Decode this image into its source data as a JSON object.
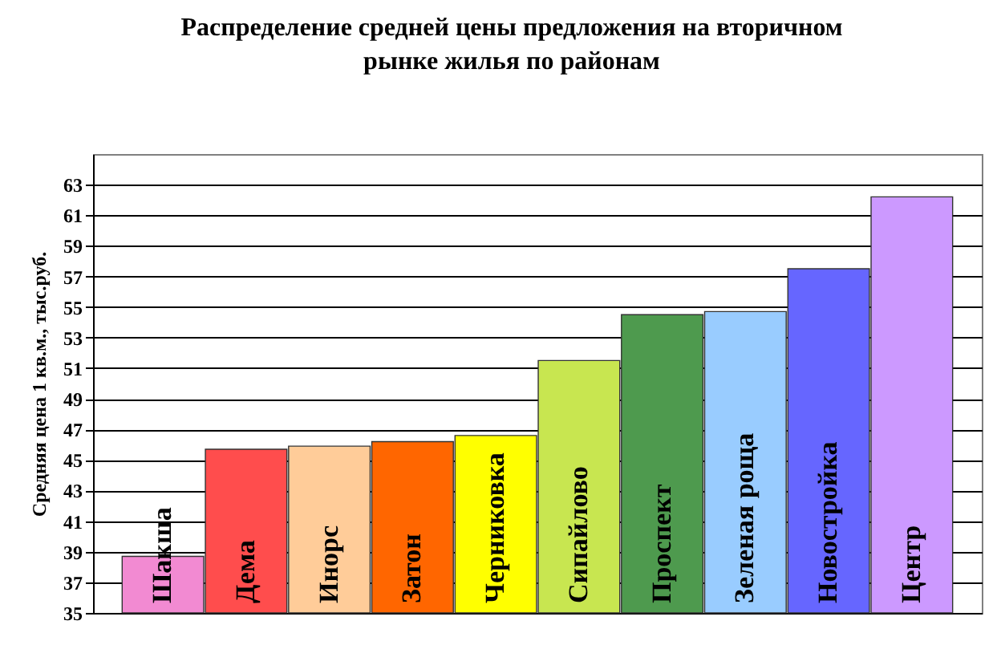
{
  "chart_data": {
    "type": "bar",
    "title": "Распределение средней цены предложения на вторичном рынке жилья по районам",
    "ylabel": "Средняя цена 1 кв.м., тыс.руб.",
    "categories": [
      "Шакша",
      "Дема",
      "Инорс",
      "Затон",
      "Черниковка",
      "Сипайлово",
      "Проспект",
      "Зеленая роща",
      "Новостройка",
      "Центр"
    ],
    "values": [
      38.7,
      45.7,
      45.9,
      46.2,
      46.6,
      51.5,
      54.5,
      54.7,
      57.5,
      62.2
    ],
    "colors": [
      "#f28ad2",
      "#ff4d4d",
      "#ffcc99",
      "#ff6600",
      "#ffff00",
      "#c8e650",
      "#4e9a4e",
      "#99ccff",
      "#6666ff",
      "#cc99ff"
    ],
    "ylim": [
      35,
      65
    ],
    "yticks": [
      35,
      37,
      39,
      41,
      43,
      45,
      47,
      49,
      51,
      53,
      55,
      57,
      59,
      61,
      63
    ],
    "grid": "y"
  }
}
